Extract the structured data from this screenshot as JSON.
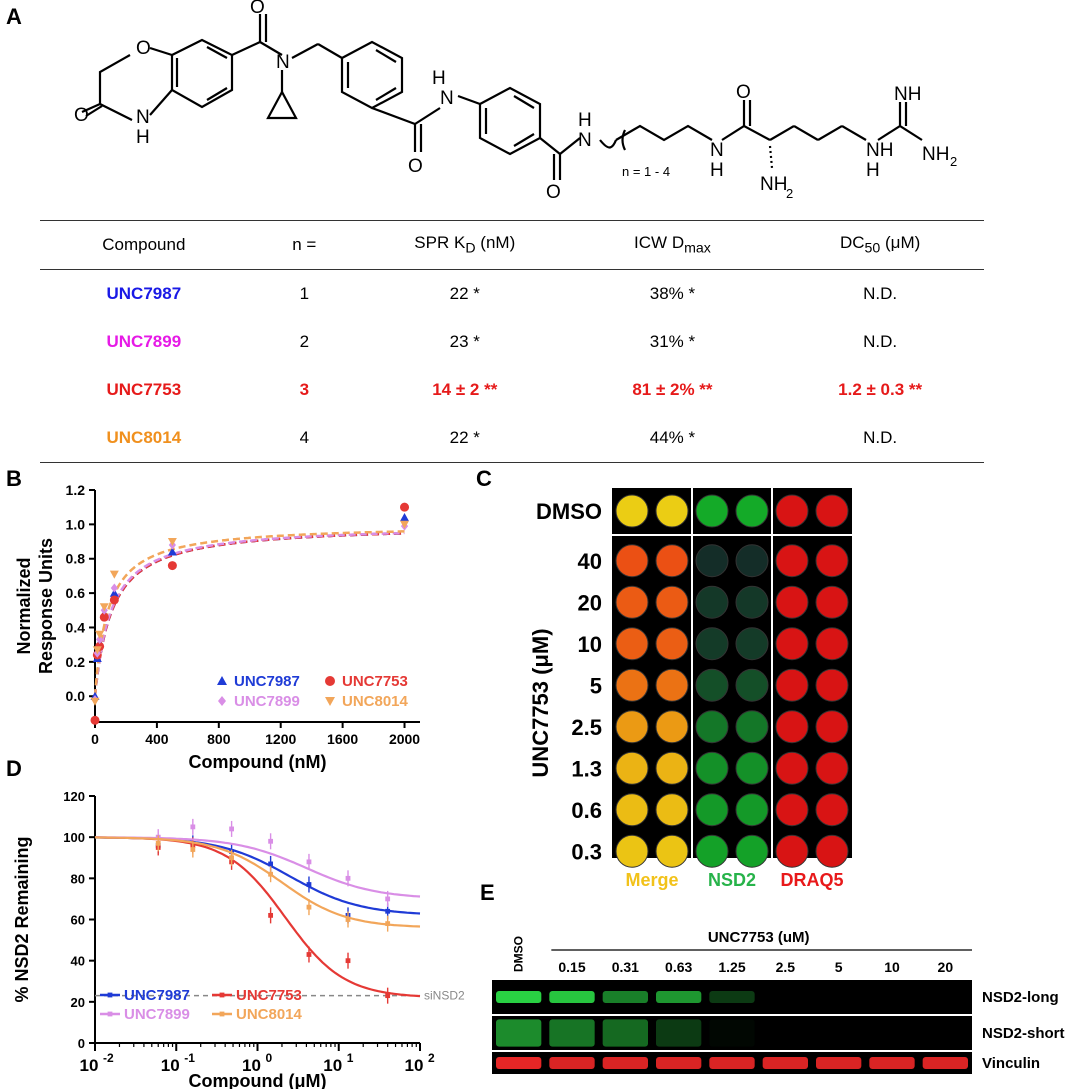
{
  "panels": {
    "a": "A",
    "b": "B",
    "c": "C",
    "d": "D",
    "e": "E"
  },
  "structure": {
    "atoms": [
      "O",
      "O",
      "N",
      "O",
      "H",
      "N",
      "H",
      "O",
      "N",
      "H",
      "O",
      "N",
      "H",
      "O",
      "N",
      "H",
      "NH",
      "NH",
      "NH",
      "2",
      "NH",
      "2"
    ],
    "n_range": "n = 1 - 4"
  },
  "table": {
    "headers": {
      "compound": "Compound",
      "n": "n =",
      "spr_pre": "SPR K",
      "spr_sub": "D",
      "spr_post": " (nM)",
      "icw_pre": "ICW D",
      "icw_sub": "max",
      "dc_pre": "DC",
      "dc_sub": "50",
      "dc_post": " (μM)"
    },
    "rows": [
      {
        "compound": "UNC7987",
        "n": "1",
        "spr": "22 *",
        "icw": "38% *",
        "dc50": "N.D.",
        "color": "#1a1ae6",
        "highlight": false
      },
      {
        "compound": "UNC7899",
        "n": "2",
        "spr": "23 *",
        "icw": "31% *",
        "dc50": "N.D.",
        "color": "#e61ae6",
        "highlight": false
      },
      {
        "compound": "UNC7753",
        "n": "3",
        "spr": "14 ± 2 **",
        "icw": "81 ± 2% **",
        "dc50": "1.2 ± 0.3 **",
        "color": "#e61a1a",
        "highlight": true
      },
      {
        "compound": "UNC8014",
        "n": "4",
        "spr": "22 *",
        "icw": "44% *",
        "dc50": "N.D.",
        "color": "#f0901e",
        "highlight": false
      }
    ]
  },
  "chart_data": [
    {
      "panel": "B",
      "type": "scatter",
      "xlabel": "Compound (nM)",
      "ylabel_lines": [
        "Normalized",
        "Response Units"
      ],
      "xlim": [
        0,
        2100
      ],
      "ylim": [
        -0.15,
        1.2
      ],
      "xticks": [
        0,
        400,
        800,
        1200,
        1600,
        2000
      ],
      "yticks": [
        0.0,
        0.2,
        0.4,
        0.6,
        0.8,
        1.0,
        1.2
      ],
      "series": [
        {
          "name": "UNC7987",
          "marker": "triangle-up",
          "color": "#1f3bd6",
          "x": [
            0,
            15,
            30,
            60,
            125,
            500,
            2000
          ],
          "y": [
            0.0,
            0.22,
            0.31,
            0.48,
            0.6,
            0.84,
            1.04
          ],
          "kd": 110
        },
        {
          "name": "UNC7753",
          "marker": "circle",
          "color": "#e53935",
          "x": [
            0,
            15,
            30,
            60,
            125,
            500,
            2000
          ],
          "y": [
            -0.14,
            0.24,
            0.29,
            0.46,
            0.56,
            0.76,
            1.1
          ],
          "kd": 110
        },
        {
          "name": "UNC7899",
          "marker": "diamond",
          "color": "#d98ee6",
          "x": [
            0,
            15,
            30,
            60,
            125,
            500,
            2000
          ],
          "y": [
            -0.02,
            0.25,
            0.33,
            0.5,
            0.63,
            0.88,
            0.99
          ],
          "kd": 105
        },
        {
          "name": "UNC8014",
          "marker": "triangle-down",
          "color": "#f2a65a",
          "x": [
            0,
            15,
            30,
            60,
            125,
            500,
            2000
          ],
          "y": [
            -0.03,
            0.27,
            0.36,
            0.52,
            0.71,
            0.9,
            1.0
          ],
          "kd": 85
        }
      ],
      "legend_position": "bottom-right"
    },
    {
      "panel": "D",
      "type": "scatter",
      "xlabel": "Compound (μM)",
      "ylabel": "% NSD2 Remaining",
      "xscale": "log",
      "xlim_log10": [
        -2,
        2
      ],
      "ylim": [
        0,
        120
      ],
      "yticks": [
        0,
        20,
        40,
        60,
        80,
        100,
        120
      ],
      "xticks": [
        {
          "base": "10",
          "exp": "-2",
          "v": -2
        },
        {
          "base": "10",
          "exp": "-1",
          "v": -1
        },
        {
          "base": "10",
          "exp": "0",
          "v": 0
        },
        {
          "base": "10",
          "exp": "1",
          "v": 1
        },
        {
          "base": "10",
          "exp": "2",
          "v": 2
        }
      ],
      "reference_line": {
        "y": 23,
        "label": "siNSD2"
      },
      "series": [
        {
          "name": "UNC7987",
          "color": "#1f3bd6",
          "x": [
            0.06,
            0.16,
            0.48,
            1.45,
            4.3,
            13,
            40
          ],
          "y": [
            96,
            97,
            93,
            87,
            77,
            62,
            64
          ],
          "bottom": 62,
          "ic50": 2.5,
          "hill": 1.0
        },
        {
          "name": "UNC7753",
          "color": "#e53935",
          "x": [
            0.06,
            0.16,
            0.48,
            1.45,
            4.3,
            13,
            40
          ],
          "y": [
            95,
            96,
            88,
            62,
            43,
            40,
            23
          ],
          "bottom": 22,
          "ic50": 2.2,
          "hill": 1.2
        },
        {
          "name": "UNC7899",
          "color": "#d98ee6",
          "x": [
            0.06,
            0.16,
            0.48,
            1.45,
            4.3,
            13,
            40
          ],
          "y": [
            100,
            105,
            104,
            98,
            88,
            80,
            70
          ],
          "bottom": 70,
          "ic50": 4.0,
          "hill": 1.0
        },
        {
          "name": "UNC8014",
          "color": "#f2a65a",
          "x": [
            0.06,
            0.16,
            0.48,
            1.45,
            4.3,
            13,
            40
          ],
          "y": [
            97,
            94,
            90,
            82,
            66,
            60,
            58
          ],
          "bottom": 56,
          "ic50": 2.0,
          "hill": 1.1
        }
      ],
      "legend_position": "bottom-left"
    }
  ],
  "icw": {
    "row_labels": [
      "DMSO",
      "40",
      "20",
      "10",
      "5",
      "2.5",
      "1.3",
      "0.6",
      "0.3"
    ],
    "axis_label": "UNC7753 (μM)",
    "channels": [
      {
        "name": "Merge",
        "color": "#f2c21a"
      },
      {
        "name": "NSD2",
        "color": "#27b34a"
      },
      {
        "name": "DRAQ5",
        "color": "#e8191a"
      }
    ],
    "nsd2_intensity": [
      0.85,
      0.12,
      0.18,
      0.2,
      0.32,
      0.55,
      0.7,
      0.75,
      0.8
    ]
  },
  "western": {
    "dmso_label": "DMSO",
    "title": "UNC7753 (uM)",
    "concentrations": [
      "0.15",
      "0.31",
      "0.63",
      "1.25",
      "2.5",
      "5",
      "10",
      "20"
    ],
    "bands": [
      {
        "name": "NSD2-long",
        "color": "#2ee84a",
        "intensity": [
          0.9,
          0.85,
          0.55,
          0.65,
          0.25,
          0,
          0,
          0,
          0
        ]
      },
      {
        "name": "NSD2-short",
        "color": "#2ee84a",
        "intensity": [
          0.6,
          0.5,
          0.45,
          0.25,
          0.03,
          0,
          0,
          0,
          0
        ]
      },
      {
        "name": "Vinculin",
        "color": "#ff2a2a",
        "intensity": [
          0.9,
          0.85,
          0.85,
          0.85,
          0.85,
          0.85,
          0.85,
          0.85,
          0.85
        ]
      }
    ]
  }
}
